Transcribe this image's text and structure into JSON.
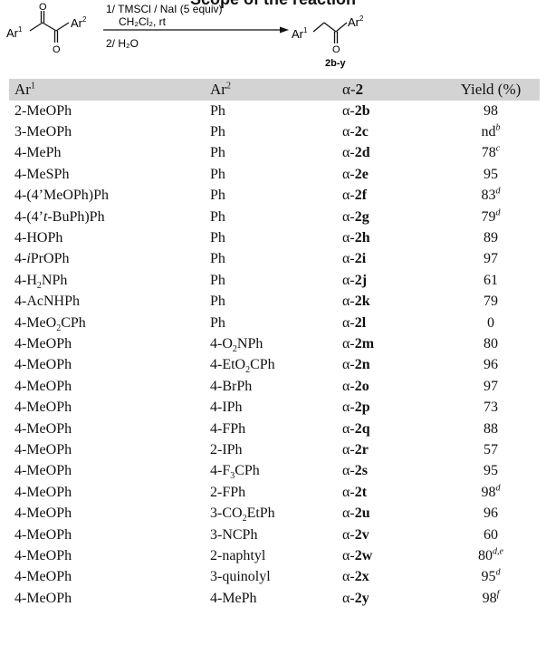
{
  "title": "Scope of the reaction",
  "scheme": {
    "reagents_line1": "1/ TMSCl / NaI (5 equiv)",
    "reagents_line2": "CH₂Cl₂, rt",
    "reagents_line3": "2/ H₂O",
    "product_label": "2b-y",
    "atoms": {
      "ar": "Ar",
      "sup1": "1",
      "sup2": "2",
      "oxygen": "O"
    }
  },
  "table": {
    "headers": {
      "ar1": "Ar<sup>1</sup>",
      "ar2": "Ar<sup>2</sup>",
      "compound": "α-<b>2</b>",
      "yield": "Yield (%)"
    },
    "rows": [
      {
        "ar1": "2-MeOPh",
        "ar2": "Ph",
        "compound": "α-<b>2b</b>",
        "yield": "98"
      },
      {
        "ar1": "3-MeOPh",
        "ar2": "Ph",
        "compound": "α-<b>2c</b>",
        "yield": "nd<sup><i>b</i></sup>"
      },
      {
        "ar1": "4-MePh",
        "ar2": "Ph",
        "compound": "α-<b>2d</b>",
        "yield": "78<sup><i>c</i></sup>"
      },
      {
        "ar1": "4-MeSPh",
        "ar2": "Ph",
        "compound": "α-<b>2e</b>",
        "yield": "95"
      },
      {
        "ar1": "4-(4’MeOPh)Ph",
        "ar2": "Ph",
        "compound": "α-<b>2f</b>",
        "yield": "83<sup><i>d</i></sup>"
      },
      {
        "ar1": "4-(4’<i>t</i>-BuPh)Ph",
        "ar2": "Ph",
        "compound": "α-<b>2g</b>",
        "yield": "79<sup><i>d</i></sup>"
      },
      {
        "ar1": "4-HOPh",
        "ar2": "Ph",
        "compound": "α-<b>2h</b>",
        "yield": "89"
      },
      {
        "ar1": "4-<i>i</i>PrOPh",
        "ar2": "Ph",
        "compound": "α-<b>2i</b>",
        "yield": "97"
      },
      {
        "ar1": "4-H<sub>2</sub>NPh",
        "ar2": "Ph",
        "compound": "α-<b>2j</b>",
        "yield": "61"
      },
      {
        "ar1": "4-AcNHPh",
        "ar2": "Ph",
        "compound": "α-<b>2k</b>",
        "yield": "79"
      },
      {
        "ar1": "4-MeO<sub>2</sub>CPh",
        "ar2": "Ph",
        "compound": "α-<b>2l</b>",
        "yield": "0"
      },
      {
        "ar1": "4-MeOPh",
        "ar2": "4-O<sub>2</sub>NPh",
        "compound": "α-<b>2m</b>",
        "yield": "80"
      },
      {
        "ar1": "4-MeOPh",
        "ar2": "4-EtO<sub>2</sub>CPh",
        "compound": "α-<b>2n</b>",
        "yield": "96"
      },
      {
        "ar1": "4-MeOPh",
        "ar2": "4-BrPh",
        "compound": "α-<b>2o</b>",
        "yield": "97"
      },
      {
        "ar1": "4-MeOPh",
        "ar2": "4-IPh",
        "compound": "α-<b>2p</b>",
        "yield": "73"
      },
      {
        "ar1": "4-MeOPh",
        "ar2": "4-FPh",
        "compound": "α-<b>2q</b>",
        "yield": "88"
      },
      {
        "ar1": "4-MeOPh",
        "ar2": "2-IPh",
        "compound": "α-<b>2r</b>",
        "yield": "57"
      },
      {
        "ar1": "4-MeOPh",
        "ar2": "4-F<sub>3</sub>CPh",
        "compound": "α-<b>2s</b>",
        "yield": "95"
      },
      {
        "ar1": "4-MeOPh",
        "ar2": "2-FPh",
        "compound": "α-<b>2t</b>",
        "yield": "98<sup><i>d</i></sup>"
      },
      {
        "ar1": "4-MeOPh",
        "ar2": "3-CO<sub>2</sub>EtPh",
        "compound": "α-<b>2u</b>",
        "yield": "96"
      },
      {
        "ar1": "4-MeOPh",
        "ar2": "3-NCPh",
        "compound": "α-<b>2v</b>",
        "yield": "60"
      },
      {
        "ar1": "4-MeOPh",
        "ar2": "2-naphtyl",
        "compound": "α-<b>2w</b>",
        "yield": "80<sup><i>d,e</i></sup>"
      },
      {
        "ar1": "4-MeOPh",
        "ar2": "3-quinolyl",
        "compound": "α-<b>2x</b>",
        "yield": "95<sup><i>d</i></sup>"
      },
      {
        "ar1": "4-MeOPh",
        "ar2": "4-MePh",
        "compound": "α-<b>2y</b>",
        "yield": "98<sup><i>f</i></sup>"
      }
    ]
  }
}
